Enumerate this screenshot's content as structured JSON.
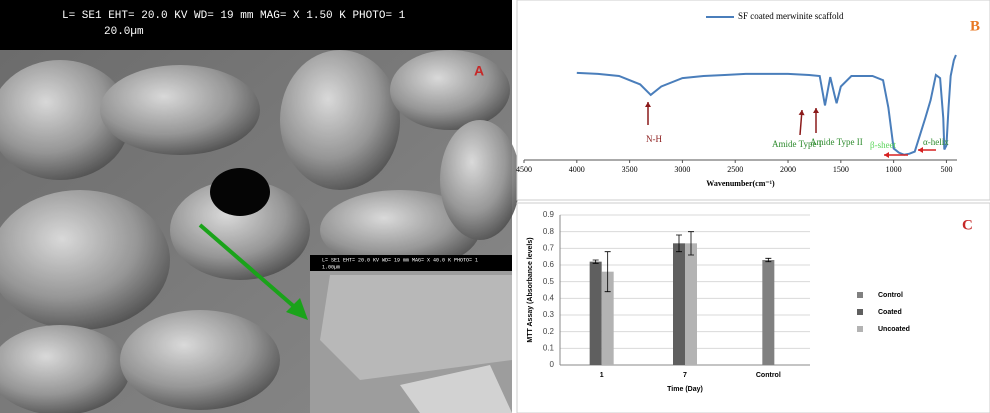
{
  "sem_image": {
    "header": "L= SE1   EHT= 20.0 KV   WD= 19   mm   MAG= X 1.50 K PHOTO= 1",
    "scale": "20.0µm",
    "letter": "A",
    "inset_header": "L= SE1   EHT= 20.0 KV   WD= 19   mm   MAG= X 40.0 K PHOTO= 1",
    "inset_scale": "1.00µm"
  },
  "chart_data": [
    {
      "type": "line",
      "letter": "B",
      "xlabel": "Wavenumber(cm⁻¹)",
      "x": [
        4000,
        3800,
        3600,
        3400,
        3300,
        3200,
        3000,
        2800,
        2600,
        2400,
        2200,
        2000,
        1800,
        1700,
        1650,
        1600,
        1560,
        1540,
        1500,
        1400,
        1200,
        1100,
        1050,
        1000,
        950,
        900,
        850,
        800,
        700,
        650,
        600,
        560,
        530,
        520,
        500,
        480,
        460,
        430,
        410
      ],
      "series": [
        {
          "name": "SF coated merwinite scaffold",
          "color": "#4a7ebb",
          "values": [
            83,
            82,
            80,
            72,
            62,
            70,
            78,
            80,
            81,
            82,
            82,
            82,
            81,
            80,
            52,
            79,
            62,
            54,
            70,
            80,
            80,
            76,
            50,
            11,
            7,
            5,
            6,
            8,
            40,
            57,
            81,
            78,
            40,
            10,
            14,
            50,
            80,
            95,
            100
          ]
        }
      ],
      "xlim": [
        4500,
        400
      ],
      "ylim": [
        0,
        100
      ],
      "xticks": [
        4500,
        4000,
        3500,
        3000,
        2500,
        2000,
        1500,
        1000,
        500
      ],
      "annotations": [
        "N-H",
        "Amide Type I",
        "Amide Type II",
        "β-sheet",
        "α-helix"
      ]
    },
    {
      "type": "bar",
      "letter": "C",
      "xlabel": "Time (Day)",
      "ylabel": "MTT Assay (Absorbance levels)",
      "categories": [
        "1",
        "7",
        "Control"
      ],
      "series": [
        {
          "name": "Control",
          "color": "#808080",
          "values": [
            null,
            null,
            0.63
          ],
          "errors": [
            null,
            null,
            0.01
          ]
        },
        {
          "name": "Coated",
          "color": "#5f5f5f",
          "values": [
            0.62,
            0.73,
            null
          ],
          "errors": [
            0.01,
            0.05,
            null
          ]
        },
        {
          "name": "Uncoated",
          "color": "#b3b3b3",
          "values": [
            0.56,
            0.73,
            null
          ],
          "errors": [
            0.12,
            0.07,
            null
          ]
        }
      ],
      "ylim": [
        0,
        0.9
      ],
      "yticks": [
        0,
        0.1,
        0.2,
        0.3,
        0.4,
        0.5,
        0.6,
        0.7,
        0.8,
        0.9
      ],
      "grid": true
    }
  ]
}
